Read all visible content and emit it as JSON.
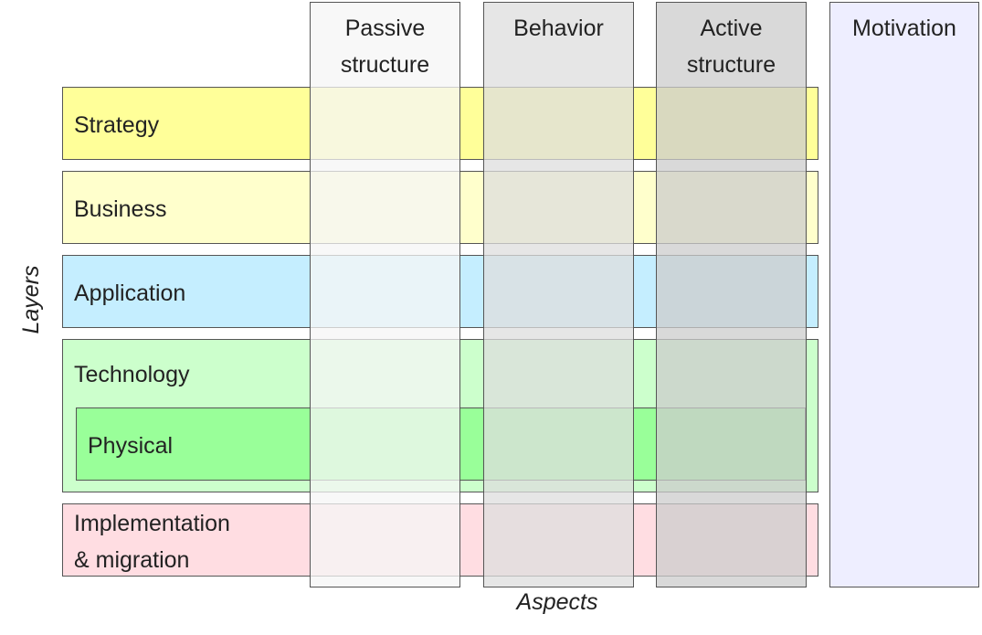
{
  "layers": {
    "strategy": {
      "label": "Strategy",
      "color": "#ffff99"
    },
    "business": {
      "label": "Business",
      "color": "#ffffcc"
    },
    "application": {
      "label": "Application",
      "color": "#c5eeff"
    },
    "technology": {
      "label": "Technology",
      "color": "#ccffcc"
    },
    "physical": {
      "label": "Physical",
      "color": "#99ff99"
    },
    "implementation": {
      "label": "Implementation\n& migration",
      "color": "#ffdde2"
    }
  },
  "aspects": {
    "passive_structure": {
      "label": "Passive\nstructure",
      "color": "rgba(245,245,245,0.75)"
    },
    "behavior": {
      "label": "Behavior",
      "color": "rgba(222,222,222,0.75)"
    },
    "active_structure": {
      "label": "Active\nstructure",
      "color": "rgba(204,204,204,0.75)"
    },
    "motivation": {
      "label": "Motivation",
      "color": "#eeeeff"
    }
  },
  "axes": {
    "vertical_label": "Layers",
    "horizontal_label": "Aspects"
  }
}
